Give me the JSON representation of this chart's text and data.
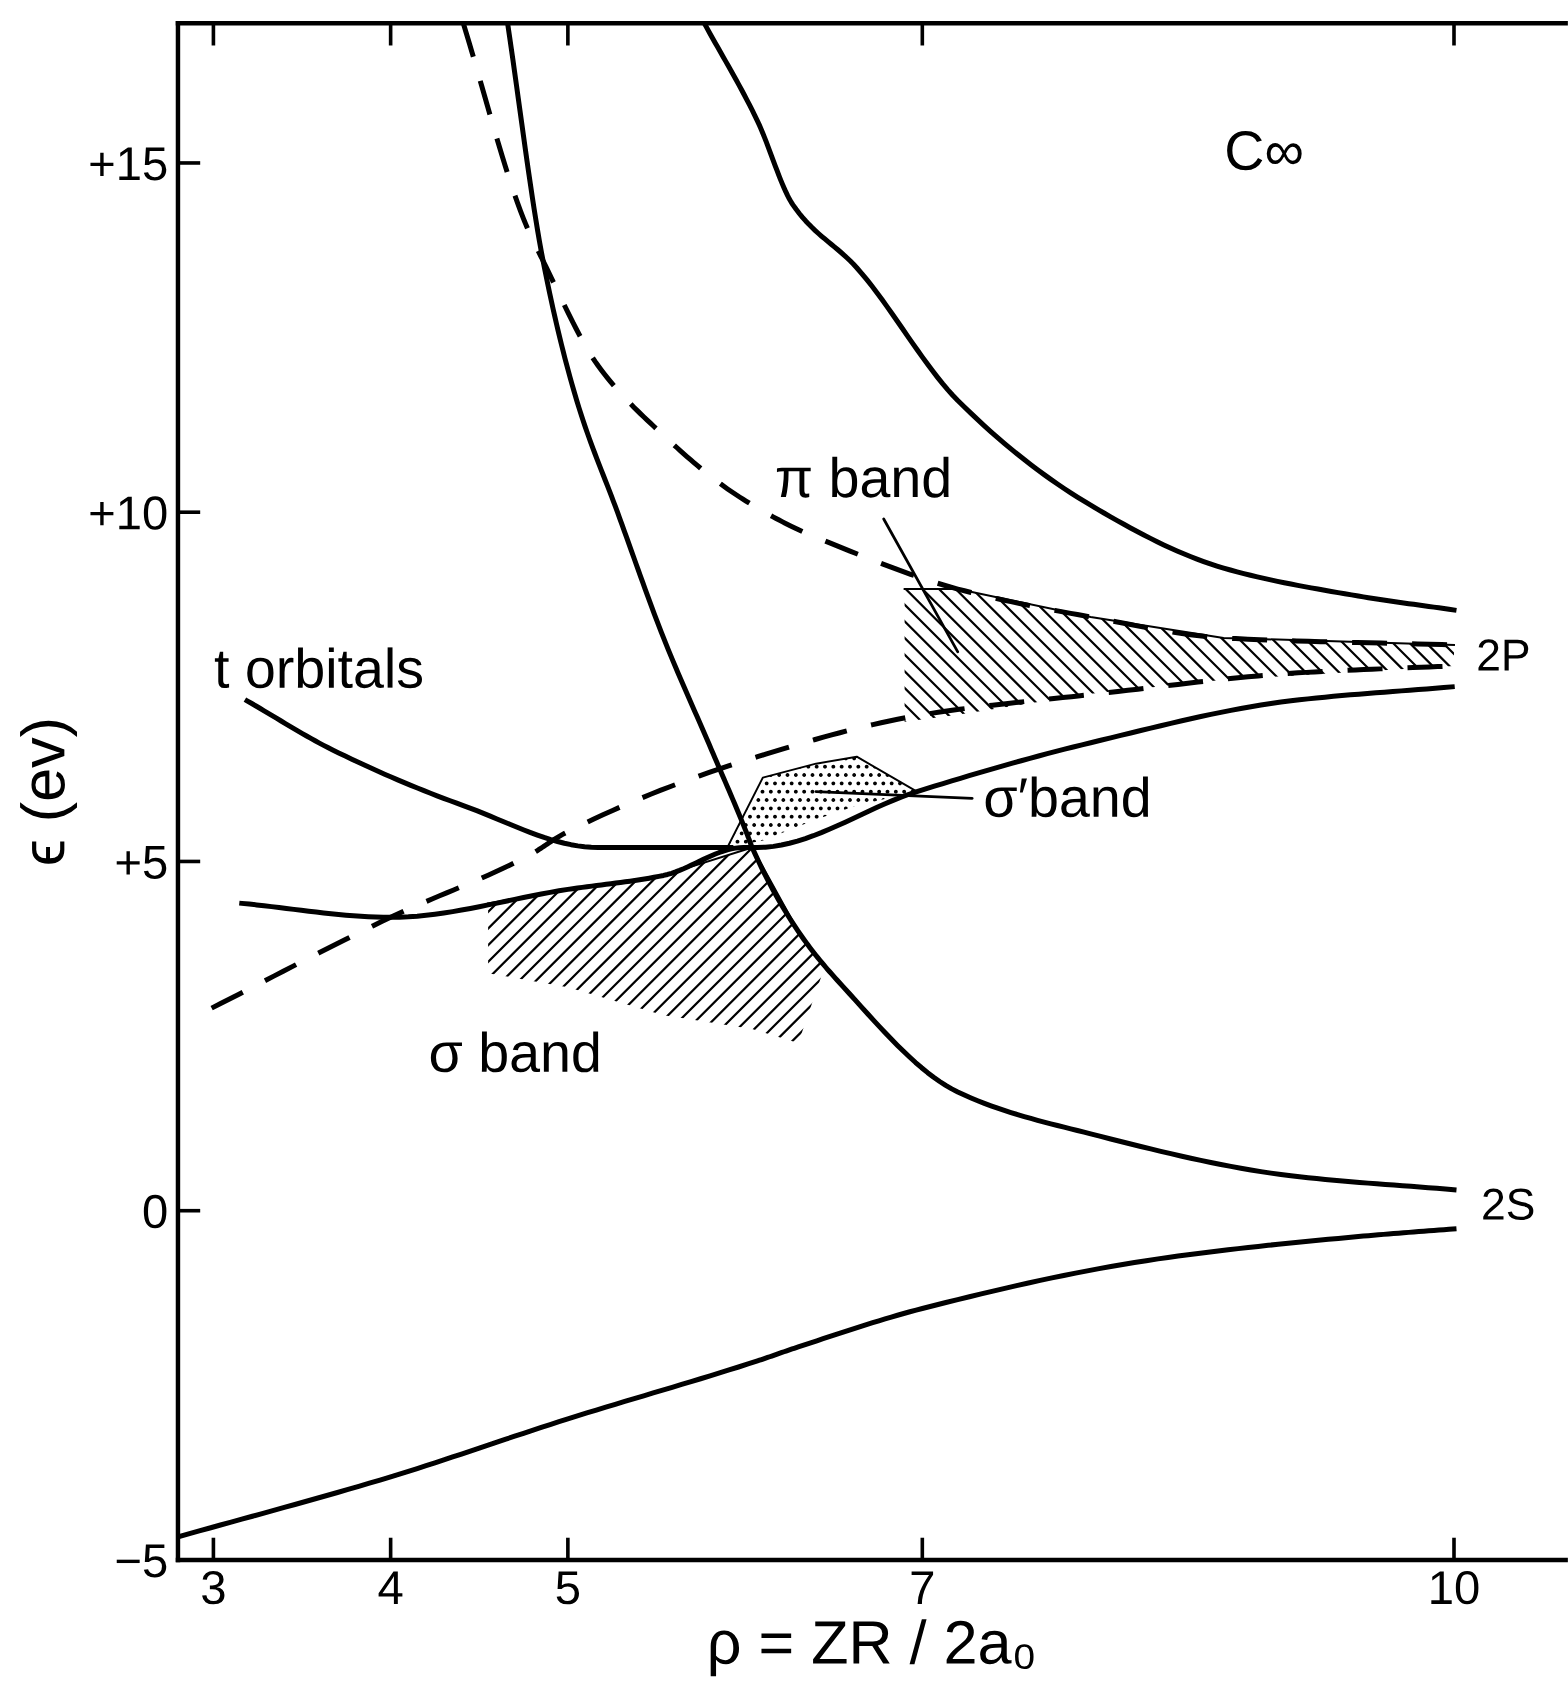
{
  "chart_data": {
    "type": "line",
    "xlabel": "ρ = ZR / 2a₀",
    "ylabel": "ϵ (ev)",
    "xlim": [
      2.8,
      10.63
    ],
    "ylim": [
      -5,
      17
    ],
    "xticks": [
      3,
      4,
      5,
      7,
      10
    ],
    "yticks": [
      {
        "value": -5,
        "label": "−5"
      },
      0,
      {
        "value": 5,
        "label": "+5"
      },
      {
        "value": 10,
        "label": "+10"
      },
      {
        "value": 15,
        "label": "+15"
      }
    ],
    "grid": false,
    "legend": false,
    "marker": "none",
    "series": [
      {
        "type": "line",
        "color": "#000000",
        "line_style": "solid",
        "x": [
          2.8,
          4.0,
          5.0,
          6.07,
          6.3,
          7.0,
          8.33,
          9.46,
          10.0
        ],
        "values": [
          -4.67,
          -3.81,
          -2.98,
          -2.15,
          -1.95,
          -1.4,
          -0.69,
          -0.37,
          -0.26
        ]
      },
      {
        "type": "line",
        "color": "#000000",
        "line_style": "solid",
        "x": [
          4.66,
          4.86,
          5.05,
          5.28,
          5.54,
          5.81,
          6.01,
          6.04,
          6.3,
          6.52,
          7.2,
          7.95,
          9.08,
          10.0
        ],
        "values": [
          17.0,
          13.6,
          11.6,
          10.0,
          8.2,
          6.6,
          5.4,
          5.2,
          4.0,
          3.3,
          1.7,
          1.1,
          0.5,
          0.3
        ]
      },
      {
        "type": "line",
        "color": "#000000",
        "line_style": "solid",
        "x": [
          5.77,
          6.07,
          6.27,
          6.63,
          7.2,
          7.95,
          8.7,
          9.46,
          10.0
        ],
        "values": [
          17.0,
          15.6,
          14.4,
          13.5,
          11.6,
          10.1,
          9.2,
          8.8,
          8.6
        ]
      },
      {
        "type": "line",
        "color": "#000000",
        "line_style": "dashed",
        "x": [
          4.41,
          4.75,
          4.86,
          5.17,
          5.54,
          5.92,
          6.26,
          6.44,
          7.2,
          7.95,
          8.7,
          10.0
        ],
        "values": [
          17.0,
          14.2,
          13.6,
          12.1,
          11.1,
          10.3,
          9.8,
          9.6,
          8.9,
          8.5,
          8.2,
          8.1
        ]
      },
      {
        "type": "line",
        "color": "#000000",
        "line_style": "dashed",
        "x": [
          2.99,
          4.0,
          4.79,
          4.98,
          6.07,
          7.0,
          7.99,
          9.12,
          10.0
        ],
        "values": [
          2.9,
          4.2,
          5.1,
          5.4,
          6.5,
          7.1,
          7.4,
          7.7,
          7.8
        ]
      },
      {
        "type": "line",
        "color": "#000000",
        "line_style": "solid",
        "x": [
          3.16,
          4.0,
          5.0,
          5.54,
          5.99,
          6.07,
          6.97,
          7.95,
          9.08,
          9.99
        ],
        "values": [
          4.4,
          4.2,
          4.6,
          4.8,
          5.2,
          5.2,
          6.0,
          6.7,
          7.3,
          7.5
        ]
      },
      {
        "color": "#000000",
        "line_style": "solid",
        "x": [
          3.19,
          3.67,
          4.41,
          5.17,
          5.92
        ],
        "values": [
          7.3,
          6.6,
          5.8,
          5.2,
          5.2
        ]
      },
      {
        "color": "#000000",
        "x": [
          4.55,
          5.0,
          5.54,
          6.04,
          6.3,
          6.45
        ],
        "values": [
          4.4,
          4.6,
          4.8,
          5.2,
          4.0,
          3.5
        ],
        "lower": [
          3.4,
          3.2,
          2.8,
          2.6,
          2.4,
          3.5
        ],
        "upper": [
          4.4,
          4.6,
          4.8,
          5.2,
          4.0,
          3.5
        ]
      },
      {
        "color": "#000000",
        "x": [
          5.9,
          6.1,
          6.4,
          6.63,
          6.97
        ],
        "values": [
          5.2,
          6.2,
          6.4,
          6.5,
          6.0
        ],
        "lower": [
          5.2,
          5.3,
          5.6,
          5.8,
          6.0
        ],
        "upper": [
          5.2,
          6.2,
          6.4,
          6.5,
          6.0
        ]
      },
      {
        "color": "#000000",
        "x": [
          6.9,
          7.2,
          7.95,
          8.7,
          10.0
        ],
        "values": [
          8.9,
          8.9,
          8.5,
          8.2,
          8.1
        ],
        "lower": [
          7.0,
          7.1,
          7.4,
          7.6,
          7.8
        ],
        "upper": [
          8.9,
          8.9,
          8.5,
          8.2,
          8.1
        ]
      }
    ],
    "annotations": [
      "C∞",
      "t orbitals",
      {
        "text": "2P",
        "x": 10.0,
        "y": 7.9
      },
      "2S",
      "π band",
      "σ′band",
      "σ band"
    ]
  }
}
